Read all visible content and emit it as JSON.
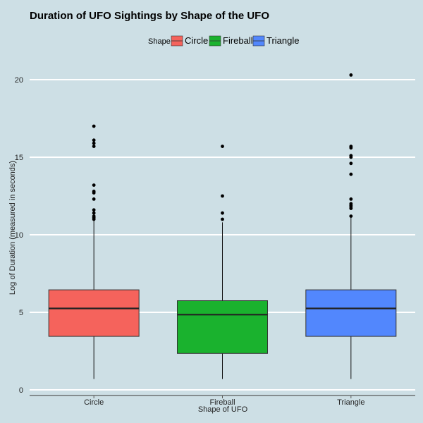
{
  "colors": {
    "background": "#cddfe5",
    "gridline": "#ffffff",
    "axis": "#5a5a5a",
    "circle": "#f5635c",
    "fireball": "#1ab22e",
    "triangle": "#5287fd"
  },
  "chart_data": {
    "type": "boxplot",
    "title": "Duration of UFO Sightings by Shape of the UFO",
    "xlabel": "Shape of UFO",
    "ylabel": "Log of Duration (measured in seconds)",
    "ylim": [
      0,
      20.7
    ],
    "yticks": [
      0,
      5,
      10,
      15,
      20
    ],
    "grid": "horizontal",
    "legend": {
      "title": "Shape",
      "position": "top",
      "entries": [
        "Circle",
        "Fireball",
        "Triangle"
      ]
    },
    "categories": [
      "Circle",
      "Fireball",
      "Triangle"
    ],
    "boxes": [
      {
        "name": "Circle",
        "whisker_low": 0.7,
        "q1": 3.45,
        "median": 5.25,
        "q3": 6.45,
        "whisker_high": 10.9,
        "outliers": [
          11.0,
          11.1,
          11.2,
          11.4,
          11.6,
          12.3,
          12.7,
          12.8,
          13.2,
          15.7,
          15.9,
          16.1,
          17.0
        ]
      },
      {
        "name": "Fireball",
        "whisker_low": 0.7,
        "q1": 2.35,
        "median": 4.85,
        "q3": 5.75,
        "whisker_high": 10.8,
        "outliers": [
          11.0,
          11.4,
          12.5,
          15.7
        ]
      },
      {
        "name": "Triangle",
        "whisker_low": 0.7,
        "q1": 3.45,
        "median": 5.25,
        "q3": 6.45,
        "whisker_high": 11.1,
        "outliers": [
          11.2,
          11.7,
          11.8,
          11.9,
          12.0,
          12.3,
          13.9,
          14.6,
          15.0,
          15.1,
          15.6,
          15.7,
          20.3
        ]
      }
    ]
  }
}
